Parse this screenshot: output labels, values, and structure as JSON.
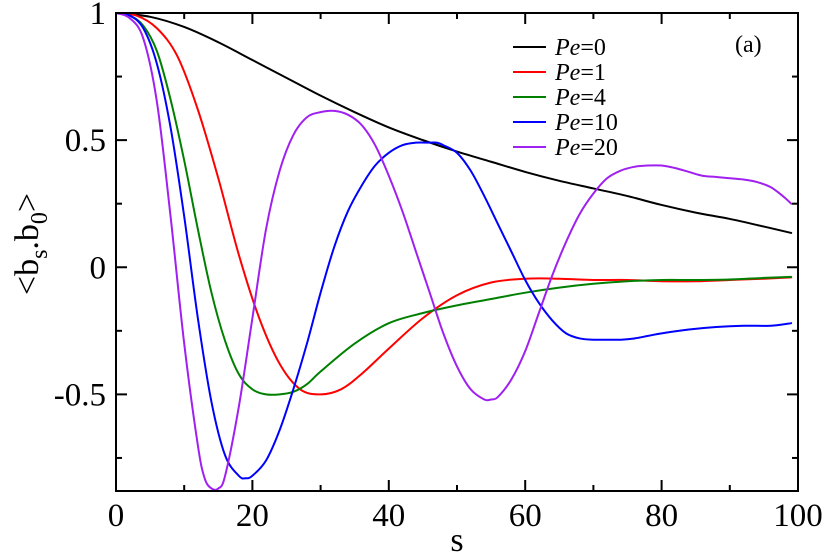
{
  "chart_data": {
    "type": "line",
    "annotation": "(a)",
    "xlabel": "s",
    "ylabel": "<b_s.b_0>",
    "xlim": [
      0,
      100
    ],
    "ylim": [
      -0.88,
      1.0
    ],
    "xticks": [
      0,
      20,
      40,
      60,
      80,
      100
    ],
    "xtick_labels": [
      "0",
      "20",
      "40",
      "60",
      "80",
      "100"
    ],
    "yticks": [
      1,
      0.5,
      0,
      -0.5
    ],
    "ytick_labels": [
      "1",
      "0.5",
      "0",
      "-0.5"
    ],
    "grid": false,
    "legend_position": "top-right",
    "series": [
      {
        "name": "Pe=0",
        "legend_var": "Pe",
        "legend_val": "=0",
        "color": "#000000",
        "x": [
          0,
          5,
          10,
          15,
          20,
          25,
          30,
          35,
          40,
          45,
          50,
          55,
          60,
          65,
          70,
          75,
          80,
          85,
          90,
          95,
          99
        ],
        "y": [
          1.0,
          0.985,
          0.945,
          0.885,
          0.815,
          0.745,
          0.675,
          0.61,
          0.55,
          0.5,
          0.455,
          0.415,
          0.375,
          0.34,
          0.31,
          0.28,
          0.245,
          0.215,
          0.19,
          0.16,
          0.135
        ]
      },
      {
        "name": "Pe=1",
        "legend_var": "Pe",
        "legend_val": "=1",
        "color": "#ff0000",
        "x": [
          0,
          3,
          6,
          9,
          12,
          15,
          18,
          21,
          24,
          27,
          30,
          33,
          36,
          40,
          45,
          50,
          55,
          60,
          65,
          70,
          75,
          80,
          85,
          90,
          95,
          99
        ],
        "y": [
          1.0,
          0.99,
          0.94,
          0.83,
          0.62,
          0.35,
          0.05,
          -0.2,
          -0.38,
          -0.48,
          -0.5,
          -0.48,
          -0.42,
          -0.32,
          -0.2,
          -0.11,
          -0.06,
          -0.045,
          -0.045,
          -0.05,
          -0.05,
          -0.055,
          -0.055,
          -0.05,
          -0.045,
          -0.04
        ]
      },
      {
        "name": "Pe=4",
        "legend_var": "Pe",
        "legend_val": "=4",
        "color": "#008000",
        "x": [
          0,
          2,
          4,
          6,
          8,
          10,
          12,
          14,
          16,
          18,
          20,
          22,
          24,
          26,
          28,
          30,
          35,
          40,
          45,
          50,
          55,
          60,
          65,
          70,
          75,
          80,
          85,
          90,
          95,
          99
        ],
        "y": [
          1.0,
          0.99,
          0.95,
          0.85,
          0.66,
          0.42,
          0.15,
          -0.1,
          -0.29,
          -0.42,
          -0.48,
          -0.5,
          -0.5,
          -0.49,
          -0.46,
          -0.41,
          -0.3,
          -0.22,
          -0.18,
          -0.15,
          -0.125,
          -0.1,
          -0.08,
          -0.065,
          -0.055,
          -0.05,
          -0.05,
          -0.048,
          -0.042,
          -0.038
        ]
      },
      {
        "name": "Pe=10",
        "legend_var": "Pe",
        "legend_val": "=10",
        "color": "#0000ff",
        "x": [
          0,
          2,
          4,
          6,
          8,
          10,
          12,
          14,
          16,
          18,
          19,
          20,
          22,
          24,
          26,
          28,
          30,
          32,
          34,
          36,
          38,
          40,
          42,
          44,
          46,
          47,
          48,
          50,
          52,
          54,
          56,
          58,
          60,
          62,
          64,
          66,
          68,
          70,
          72,
          74,
          76,
          78,
          80,
          84,
          88,
          92,
          96,
          99
        ],
        "y": [
          1.0,
          0.99,
          0.94,
          0.8,
          0.55,
          0.2,
          -0.2,
          -0.53,
          -0.74,
          -0.82,
          -0.83,
          -0.82,
          -0.76,
          -0.64,
          -0.48,
          -0.3,
          -0.1,
          0.08,
          0.22,
          0.32,
          0.4,
          0.45,
          0.48,
          0.49,
          0.49,
          0.49,
          0.48,
          0.45,
          0.38,
          0.28,
          0.17,
          0.06,
          -0.05,
          -0.14,
          -0.21,
          -0.26,
          -0.28,
          -0.285,
          -0.285,
          -0.285,
          -0.28,
          -0.27,
          -0.26,
          -0.245,
          -0.235,
          -0.23,
          -0.23,
          -0.22
        ]
      },
      {
        "name": "Pe=20",
        "legend_var": "Pe",
        "legend_val": "=20",
        "color": "#a020f0",
        "x": [
          0,
          2,
          4,
          6,
          8,
          10,
          12,
          13,
          14,
          15,
          16,
          18,
          20,
          22,
          24,
          26,
          28,
          30,
          32,
          34,
          36,
          38,
          40,
          42,
          44,
          46,
          48,
          50,
          52,
          54,
          55,
          56,
          58,
          60,
          62,
          64,
          66,
          68,
          70,
          72,
          74,
          76,
          78,
          80,
          82,
          84,
          86,
          88,
          90,
          92,
          94,
          96,
          98,
          99
        ],
        "y": [
          1.0,
          0.98,
          0.9,
          0.65,
          0.2,
          -0.3,
          -0.7,
          -0.83,
          -0.87,
          -0.87,
          -0.82,
          -0.55,
          -0.2,
          0.15,
          0.38,
          0.52,
          0.59,
          0.61,
          0.615,
          0.6,
          0.56,
          0.48,
          0.36,
          0.22,
          0.06,
          -0.1,
          -0.26,
          -0.39,
          -0.48,
          -0.52,
          -0.52,
          -0.51,
          -0.44,
          -0.33,
          -0.18,
          -0.03,
          0.1,
          0.21,
          0.29,
          0.35,
          0.38,
          0.395,
          0.4,
          0.4,
          0.39,
          0.375,
          0.36,
          0.355,
          0.35,
          0.345,
          0.335,
          0.315,
          0.275,
          0.25
        ]
      }
    ]
  }
}
